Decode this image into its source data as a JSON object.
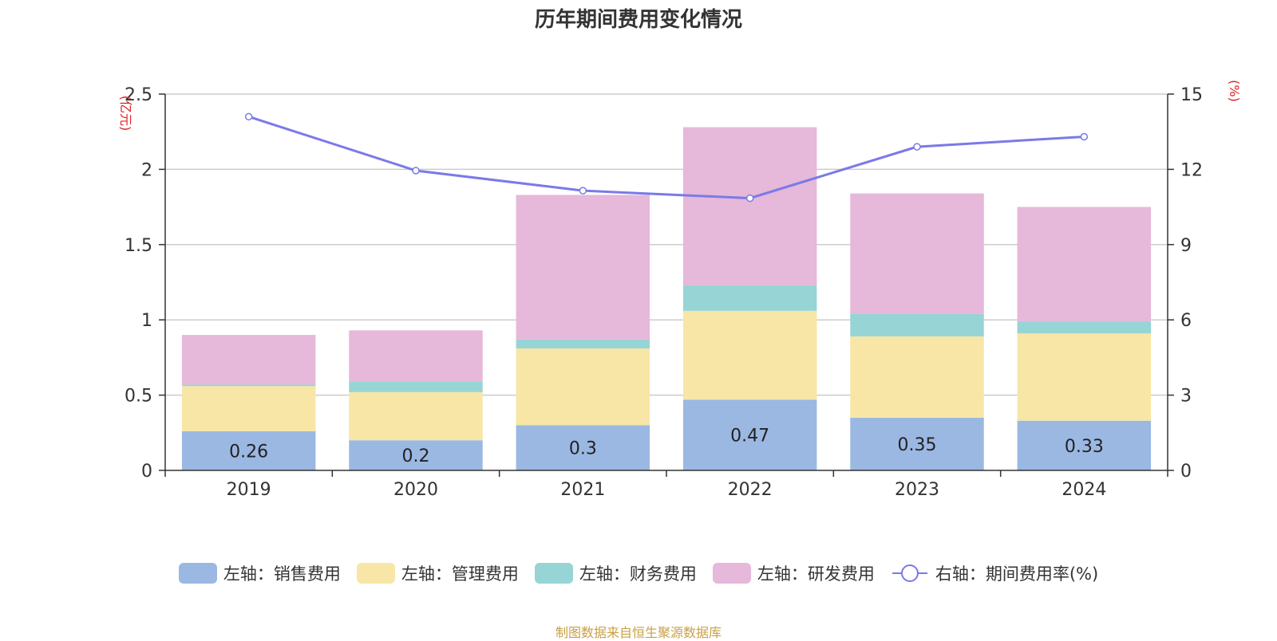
{
  "chart_data": {
    "type": "bar",
    "title": "历年期间费用变化情况",
    "categories": [
      "2019",
      "2020",
      "2021",
      "2022",
      "2023",
      "2024"
    ],
    "left_axis": {
      "label": "(亿元)",
      "range": [
        0,
        2.5
      ],
      "ticks": [
        "0",
        "0.5",
        "1",
        "1.5",
        "2",
        "2.5"
      ],
      "tick_values": [
        0,
        0.5,
        1,
        1.5,
        2,
        2.5
      ]
    },
    "right_axis": {
      "label": "(%)",
      "range": [
        0,
        15
      ],
      "ticks": [
        "0",
        "3",
        "6",
        "9",
        "12",
        "15"
      ],
      "tick_values": [
        0,
        3,
        6,
        9,
        12,
        15
      ]
    },
    "series": [
      {
        "name": "左轴：销售费用",
        "kind": "bar",
        "axis": "left",
        "color": "#9bb8e2",
        "values": [
          0.26,
          0.2,
          0.3,
          0.47,
          0.35,
          0.33
        ],
        "labels": [
          "0.26",
          "0.2",
          "0.3",
          "0.47",
          "0.35",
          "0.33"
        ]
      },
      {
        "name": "左轴：管理费用",
        "kind": "bar",
        "axis": "left",
        "color": "#f7e6a6",
        "values": [
          0.3,
          0.32,
          0.51,
          0.59,
          0.54,
          0.58
        ]
      },
      {
        "name": "左轴：财务费用",
        "kind": "bar",
        "axis": "left",
        "color": "#97d4d5",
        "values": [
          0.01,
          0.07,
          0.06,
          0.17,
          0.15,
          0.08
        ]
      },
      {
        "name": "左轴：研发费用",
        "kind": "bar",
        "axis": "left",
        "color": "#e6b8d9",
        "values": [
          0.33,
          0.34,
          0.96,
          1.05,
          0.8,
          0.76
        ]
      },
      {
        "name": "右轴：期间费用率(%)",
        "kind": "line",
        "axis": "right",
        "color": "#7a7ae8",
        "values": [
          14.1,
          11.95,
          11.15,
          10.85,
          12.9,
          13.3
        ]
      }
    ],
    "grid": true,
    "legend_position": "bottom"
  },
  "source_note": "制图数据来自恒生聚源数据库"
}
